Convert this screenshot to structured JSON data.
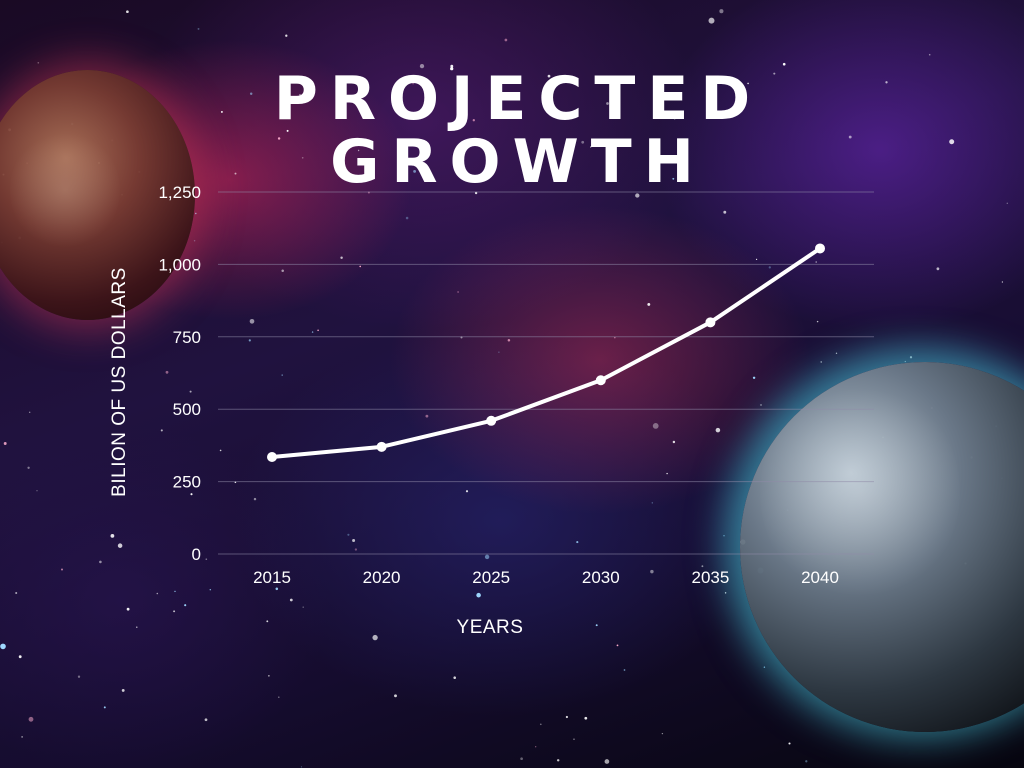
{
  "chart_data": {
    "type": "line",
    "title": "PROJECTED GROWTH",
    "title_lines": [
      "PROJECTED",
      "GROWTH"
    ],
    "xlabel": "YEARS",
    "ylabel": "BILION OF US DOLLARS",
    "categories": [
      "2015",
      "2020",
      "2025",
      "2030",
      "2035",
      "2040"
    ],
    "y_ticks": [
      "0",
      "250",
      "500",
      "750",
      "1,000",
      "1,250"
    ],
    "y_tick_values": [
      0,
      250,
      500,
      750,
      1000,
      1250
    ],
    "ylim": [
      0,
      1250
    ],
    "grid": true,
    "legend": "none",
    "series": [
      {
        "values": [
          335,
          370,
          460,
          600,
          800,
          1055
        ]
      }
    ],
    "colors": {
      "line": "#ffffff",
      "grid": "#8f8aa8",
      "text": "#ffffff"
    }
  }
}
